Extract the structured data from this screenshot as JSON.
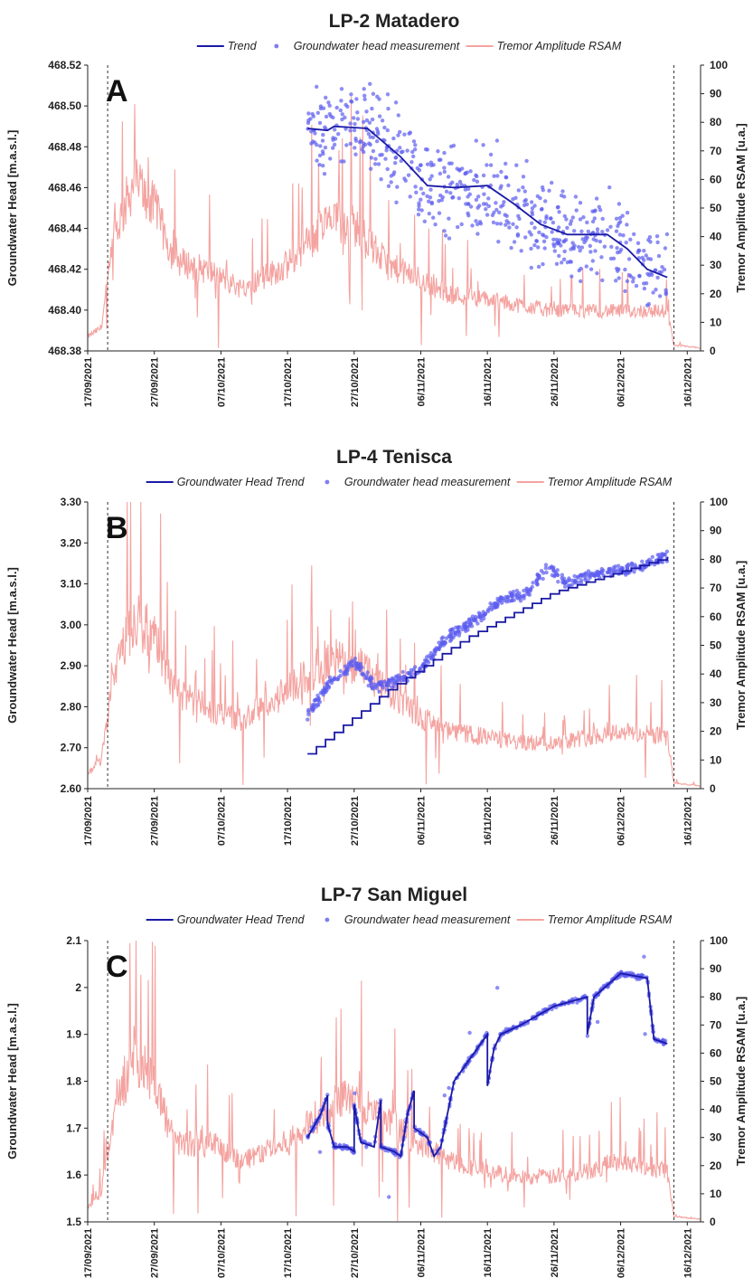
{
  "colors": {
    "trend": "#1a1aa6",
    "points": "#5c5cf0",
    "rsam": "#f4a3a0",
    "axis": "#222222"
  },
  "x_ticks": [
    "17/09/2021",
    "27/09/2021",
    "07/10/2021",
    "17/10/2021",
    "27/10/2021",
    "06/11/2021",
    "16/11/2021",
    "26/11/2021",
    "06/12/2021",
    "16/12/2021"
  ],
  "right_ticks": [
    "0",
    "10",
    "20",
    "30",
    "40",
    "50",
    "60",
    "70",
    "80",
    "90",
    "100"
  ],
  "right_label": "Tremor Amplitude RSAM [u.a.]",
  "left_label": "Groundwater Head [m.a.s.l.]",
  "chart_data": [
    {
      "type": "line",
      "title": "LP-2 Matadero",
      "panel": "A",
      "legend": [
        "Trend",
        "Groundwater head measurement",
        "Tremor Amplitude RSAM"
      ],
      "ylabel": "Groundwater Head [m.a.s.l.]",
      "y2label": "Tremor Amplitude RSAM [u.a.]",
      "ylim": [
        468.38,
        468.52
      ],
      "y_ticks": [
        "468.38",
        "468.40",
        "468.42",
        "468.44",
        "468.46",
        "468.48",
        "468.50",
        "468.52"
      ],
      "y2lim": [
        0,
        100
      ],
      "xlim": [
        "17/09/2021",
        "18/12/2021"
      ],
      "vlines_dashed": [
        "20/09/2021",
        "14/12/2021"
      ],
      "series": [
        {
          "name": "Trend",
          "kind": "line",
          "points": [
            [
              "20/10/2021",
              468.489
            ],
            [
              "23/10/2021",
              468.488
            ],
            [
              "24/10/2021",
              468.49
            ],
            [
              "29/10/2021",
              468.489
            ],
            [
              "03/11/2021",
              468.475
            ],
            [
              "07/11/2021",
              468.461
            ],
            [
              "11/11/2021",
              468.46
            ],
            [
              "16/11/2021",
              468.461
            ],
            [
              "20/11/2021",
              468.452
            ],
            [
              "24/11/2021",
              468.442
            ],
            [
              "28/11/2021",
              468.437
            ],
            [
              "04/12/2021",
              468.437
            ],
            [
              "07/12/2021",
              468.43
            ],
            [
              "10/12/2021",
              468.42
            ],
            [
              "13/12/2021",
              468.416
            ]
          ]
        },
        {
          "name": "Groundwater head measurement",
          "kind": "scatter",
          "spread": 0.02
        },
        {
          "name": "Tremor Amplitude RSAM",
          "kind": "noisy-line",
          "axis": "right",
          "baseline": [
            [
              "17/09/2021",
              5
            ],
            [
              "19/09/2021",
              8
            ],
            [
              "21/09/2021",
              40
            ],
            [
              "24/09/2021",
              60
            ],
            [
              "27/09/2021",
              50
            ],
            [
              "30/09/2021",
              32
            ],
            [
              "05/10/2021",
              28
            ],
            [
              "10/10/2021",
              22
            ],
            [
              "17/10/2021",
              30
            ],
            [
              "23/10/2021",
              45
            ],
            [
              "27/10/2021",
              44
            ],
            [
              "01/11/2021",
              30
            ],
            [
              "06/11/2021",
              25
            ],
            [
              "10/11/2021",
              20
            ],
            [
              "16/11/2021",
              18
            ],
            [
              "21/11/2021",
              16
            ],
            [
              "26/11/2021",
              14
            ],
            [
              "06/12/2021",
              14
            ],
            [
              "13/12/2021",
              14
            ],
            [
              "14/12/2021",
              2
            ],
            [
              "18/12/2021",
              1
            ]
          ]
        }
      ]
    },
    {
      "type": "line",
      "title": "LP-4 Tenisca",
      "panel": "B",
      "legend": [
        "Groundwater Head Trend",
        "Groundwater head measurement",
        "Tremor Amplitude RSAM"
      ],
      "ylabel": "Groundwater Head [m.a.s.l.]",
      "y2label": "Tremor Amplitude RSAM [u.a.]",
      "ylim": [
        2.6,
        3.3
      ],
      "y_ticks": [
        "2.60",
        "2.70",
        "2.80",
        "2.90",
        "3.00",
        "3.10",
        "3.20",
        "3.30"
      ],
      "y2lim": [
        0,
        100
      ],
      "xlim": [
        "17/09/2021",
        "18/12/2021"
      ],
      "vlines_dashed": [
        "20/09/2021",
        "14/12/2021"
      ],
      "series": [
        {
          "name": "Groundwater Head Trend",
          "kind": "step",
          "points": [
            [
              "20/10/2021",
              2.685
            ],
            [
              "01/11/2021",
              2.84
            ],
            [
              "13/11/2021",
              2.97
            ],
            [
              "26/11/2021",
              3.08
            ],
            [
              "06/12/2021",
              3.13
            ],
            [
              "13/12/2021",
              3.165
            ]
          ]
        },
        {
          "name": "Groundwater head measurement",
          "kind": "scatter",
          "spread": 0.012,
          "points": [
            [
              "20/10/2021",
              2.78
            ],
            [
              "23/10/2021",
              2.85
            ],
            [
              "27/10/2021",
              2.91
            ],
            [
              "30/10/2021",
              2.85
            ],
            [
              "02/11/2021",
              2.86
            ],
            [
              "06/11/2021",
              2.89
            ],
            [
              "10/11/2021",
              2.97
            ],
            [
              "15/11/2021",
              3.02
            ],
            [
              "18/11/2021",
              3.06
            ],
            [
              "22/11/2021",
              3.08
            ],
            [
              "25/11/2021",
              3.14
            ],
            [
              "28/11/2021",
              3.1
            ],
            [
              "01/12/2021",
              3.12
            ],
            [
              "05/12/2021",
              3.13
            ],
            [
              "09/12/2021",
              3.14
            ],
            [
              "13/12/2021",
              3.17
            ]
          ]
        },
        {
          "name": "Tremor Amplitude RSAM",
          "kind": "noisy-line",
          "axis": "right",
          "baseline": [
            [
              "17/09/2021",
              5
            ],
            [
              "19/09/2021",
              10
            ],
            [
              "21/09/2021",
              42
            ],
            [
              "24/09/2021",
              60
            ],
            [
              "27/09/2021",
              52
            ],
            [
              "30/09/2021",
              34
            ],
            [
              "05/10/2021",
              28
            ],
            [
              "10/10/2021",
              24
            ],
            [
              "17/10/2021",
              34
            ],
            [
              "23/10/2021",
              45
            ],
            [
              "27/10/2021",
              44
            ],
            [
              "01/11/2021",
              34
            ],
            [
              "06/11/2021",
              25
            ],
            [
              "10/11/2021",
              20
            ],
            [
              "16/11/2021",
              18
            ],
            [
              "21/11/2021",
              16
            ],
            [
              "26/11/2021",
              16
            ],
            [
              "01/12/2021",
              18
            ],
            [
              "06/12/2021",
              20
            ],
            [
              "13/12/2021",
              18
            ],
            [
              "14/12/2021",
              2
            ],
            [
              "18/12/2021",
              1
            ]
          ]
        }
      ]
    },
    {
      "type": "line",
      "title": "LP-7 San Miguel",
      "panel": "C",
      "legend": [
        "Groundwater Head Trend",
        "Groundwater head measurement",
        "Tremor Amplitude RSAM"
      ],
      "ylabel": "Groundwater Head [m.a.s.l.]",
      "y2label": "Tremor Amplitude RSAM [u.a.]",
      "ylim": [
        1.5,
        2.1
      ],
      "y_ticks": [
        "1.5",
        "1.6",
        "1.7",
        "1.8",
        "1.9",
        "2",
        "2.1"
      ],
      "y2lim": [
        0,
        100
      ],
      "xlim": [
        "17/09/2021",
        "18/12/2021"
      ],
      "vlines_dashed": [
        "20/09/2021",
        "14/12/2021"
      ],
      "series": [
        {
          "name": "Groundwater Head Trend",
          "kind": "line",
          "points": [
            [
              "20/10/2021",
              1.68
            ],
            [
              "22/10/2021",
              1.73
            ],
            [
              "23/10/2021",
              1.77
            ],
            [
              "23/10/2021",
              1.71
            ],
            [
              "24/10/2021",
              1.66
            ],
            [
              "26/10/2021",
              1.66
            ],
            [
              "27/10/2021",
              1.65
            ],
            [
              "27/10/2021",
              1.75
            ],
            [
              "28/10/2021",
              1.67
            ],
            [
              "30/10/2021",
              1.66
            ],
            [
              "31/10/2021",
              1.76
            ],
            [
              "31/10/2021",
              1.66
            ],
            [
              "02/11/2021",
              1.65
            ],
            [
              "03/11/2021",
              1.64
            ],
            [
              "04/11/2021",
              1.73
            ],
            [
              "05/11/2021",
              1.78
            ],
            [
              "05/11/2021",
              1.7
            ],
            [
              "07/11/2021",
              1.68
            ],
            [
              "08/11/2021",
              1.64
            ],
            [
              "09/11/2021",
              1.66
            ],
            [
              "11/11/2021",
              1.8
            ],
            [
              "14/11/2021",
              1.86
            ],
            [
              "16/11/2021",
              1.9
            ],
            [
              "16/11/2021",
              1.79
            ],
            [
              "17/11/2021",
              1.87
            ],
            [
              "18/11/2021",
              1.9
            ],
            [
              "21/11/2021",
              1.92
            ],
            [
              "26/11/2021",
              1.96
            ],
            [
              "01/12/2021",
              1.98
            ],
            [
              "01/12/2021",
              1.9
            ],
            [
              "02/12/2021",
              1.98
            ],
            [
              "06/12/2021",
              2.03
            ],
            [
              "10/12/2021",
              2.02
            ],
            [
              "11/12/2021",
              1.89
            ],
            [
              "13/12/2021",
              1.88
            ]
          ]
        },
        {
          "name": "Groundwater head measurement",
          "kind": "scatter",
          "spread": 0.005
        },
        {
          "name": "Tremor Amplitude RSAM",
          "kind": "noisy-line",
          "axis": "right",
          "baseline": [
            [
              "17/09/2021",
              5
            ],
            [
              "19/09/2021",
              10
            ],
            [
              "21/09/2021",
              38
            ],
            [
              "24/09/2021",
              60
            ],
            [
              "27/09/2021",
              50
            ],
            [
              "30/09/2021",
              28
            ],
            [
              "05/10/2021",
              28
            ],
            [
              "10/10/2021",
              22
            ],
            [
              "17/10/2021",
              28
            ],
            [
              "23/10/2021",
              40
            ],
            [
              "27/10/2021",
              45
            ],
            [
              "01/11/2021",
              35
            ],
            [
              "06/11/2021",
              28
            ],
            [
              "10/11/2021",
              22
            ],
            [
              "16/11/2021",
              18
            ],
            [
              "21/11/2021",
              16
            ],
            [
              "26/11/2021",
              16
            ],
            [
              "01/12/2021",
              18
            ],
            [
              "06/12/2021",
              22
            ],
            [
              "13/12/2021",
              18
            ],
            [
              "14/12/2021",
              2
            ],
            [
              "18/12/2021",
              1
            ]
          ]
        }
      ]
    }
  ]
}
